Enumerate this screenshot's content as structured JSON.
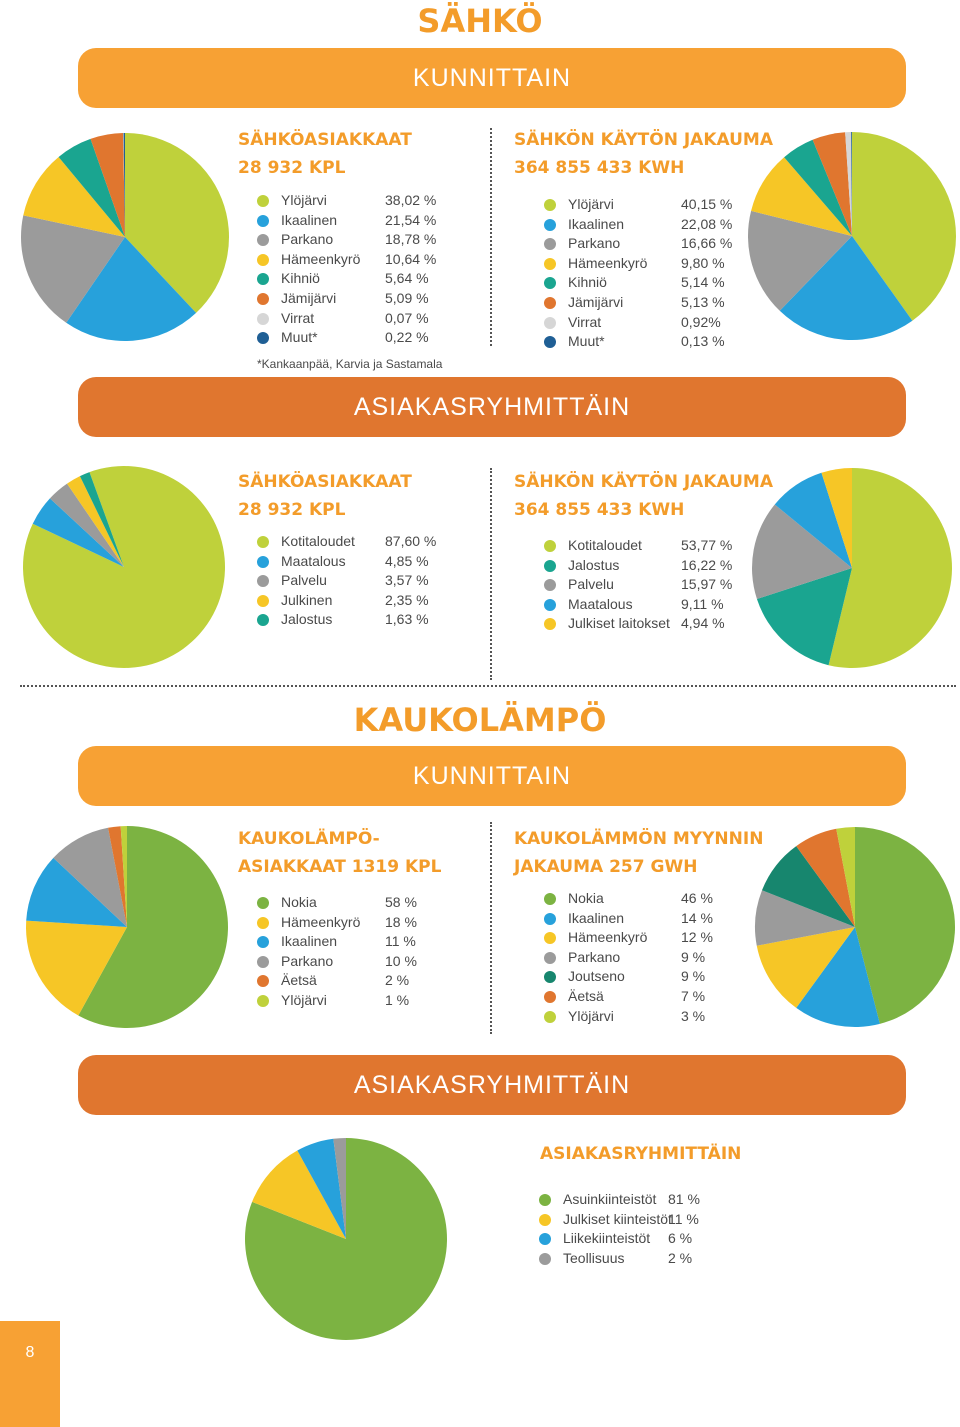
{
  "sahko": {
    "title": "SÄHKÖ",
    "banner_kunnittain": "KUNNITTAIN",
    "banner_asiakasryhmittain": "ASIAKASRYHMITTÄIN",
    "kunnittain_left": {
      "h1": "SÄHKÖASIAKKAAT",
      "h2": "28 932 KPL"
    },
    "kunnittain_right": {
      "h1": "SÄHKÖN KÄYTÖN JAKAUMA",
      "h2": "364 855 433 KWH"
    },
    "footnote": "*Kankaanpää, Karvia ja Sastamala",
    "ryhmittain_left": {
      "h1": "SÄHKÖASIAKKAAT",
      "h2": "28 932 KPL"
    },
    "ryhmittain_right": {
      "h1": "SÄHKÖN KÄYTÖN JAKAUMA",
      "h2": "364 855 433 KWH"
    }
  },
  "kaukolampo": {
    "title": "KAUKOLÄMPÖ",
    "banner_kunnittain": "KUNNITTAIN",
    "banner_asiakasryhmittain": "ASIAKASRYHMITTÄIN",
    "kunnittain_left": {
      "h1": "KAUKOLÄMPÖ-",
      "h2": "ASIAKKAAT 1319 KPL"
    },
    "kunnittain_right": {
      "h1": "KAUKOLÄMMÖN MYYNNIN",
      "h2": "JAKAUMA 257 GWH"
    },
    "ryhmittain": {
      "h1": "ASIAKASRYHMITTÄIN"
    }
  },
  "page_number": "8",
  "chart_data": [
    {
      "id": "c1",
      "type": "pie",
      "labels": [
        "Ylöjärvi",
        "Ikaalinen",
        "Parkano",
        "Hämeenkyrö",
        "Kihniö",
        "Jämijärvi",
        "Virrat",
        "Muut*"
      ],
      "values": [
        38.02,
        21.54,
        18.78,
        10.64,
        5.64,
        5.09,
        0.07,
        0.22
      ],
      "value_labels": [
        "38,02 %",
        "21,54 %",
        "18,78 %",
        "10,64 %",
        "5,64 %",
        "5,09 %",
        "0,07 %",
        "0,22 %"
      ],
      "colors": [
        "#bfd13b",
        "#27a1db",
        "#9b9b9b",
        "#f6c626",
        "#1aa590",
        "#e0762f",
        "#d6d6d6",
        "#1f5f95"
      ]
    },
    {
      "id": "c2",
      "type": "pie",
      "labels": [
        "Ylöjärvi",
        "Ikaalinen",
        "Parkano",
        "Hämeenkyrö",
        "Kihniö",
        "Jämijärvi",
        "Virrat",
        "Muut*"
      ],
      "values": [
        40.15,
        22.08,
        16.66,
        9.8,
        5.14,
        5.13,
        0.92,
        0.13
      ],
      "value_labels": [
        "40,15 %",
        "22,08 %",
        "16,66 %",
        "9,80 %",
        "5,14 %",
        "5,13 %",
        "0,92%",
        "0,13 %"
      ],
      "colors": [
        "#bfd13b",
        "#27a1db",
        "#9b9b9b",
        "#f6c626",
        "#1aa590",
        "#e0762f",
        "#d6d6d6",
        "#1f5f95"
      ]
    },
    {
      "id": "c3",
      "type": "pie",
      "labels": [
        "Kotitaloudet",
        "Maatalous",
        "Palvelu",
        "Julkinen",
        "Jalostus"
      ],
      "values": [
        87.6,
        4.85,
        3.57,
        2.35,
        1.63
      ],
      "value_labels": [
        "87,60 %",
        "4,85 %",
        "3,57 %",
        "2,35 %",
        "1,63 %"
      ],
      "colors": [
        "#bfd13b",
        "#27a1db",
        "#9b9b9b",
        "#f6c626",
        "#1aa590"
      ]
    },
    {
      "id": "c4",
      "type": "pie",
      "labels": [
        "Kotitaloudet",
        "Jalostus",
        "Palvelu",
        "Maatalous",
        "Julkiset laitokset"
      ],
      "values": [
        53.77,
        16.22,
        15.97,
        9.11,
        4.94
      ],
      "value_labels": [
        "53,77 %",
        "16,22 %",
        "15,97 %",
        "9,11 %",
        "4,94 %"
      ],
      "colors": [
        "#bfd13b",
        "#1aa590",
        "#9b9b9b",
        "#27a1db",
        "#f6c626"
      ]
    },
    {
      "id": "c5",
      "type": "pie",
      "labels": [
        "Nokia",
        "Hämeenkyrö",
        "Ikaalinen",
        "Parkano",
        "Äetsä",
        "Ylöjärvi"
      ],
      "values": [
        58,
        18,
        11,
        10,
        2,
        1
      ],
      "value_labels": [
        "58 %",
        "18 %",
        "11 %",
        "10 %",
        "2 %",
        "1 %"
      ],
      "colors": [
        "#7cb342",
        "#f6c626",
        "#27a1db",
        "#9b9b9b",
        "#e0762f",
        "#bfd13b"
      ]
    },
    {
      "id": "c6",
      "type": "pie",
      "labels": [
        "Nokia",
        "Ikaalinen",
        "Hämeenkyrö",
        "Parkano",
        "Joutseno",
        "Äetsä",
        "Ylöjärvi"
      ],
      "values": [
        46,
        14,
        12,
        9,
        9,
        7,
        3
      ],
      "value_labels": [
        "46 %",
        "14 %",
        "12 %",
        "9 %",
        "9 %",
        "7 %",
        "3 %"
      ],
      "colors": [
        "#7cb342",
        "#27a1db",
        "#f6c626",
        "#9b9b9b",
        "#17866e",
        "#e0762f",
        "#bfd13b"
      ]
    },
    {
      "id": "c7",
      "type": "pie",
      "labels": [
        "Asuinkiinteistöt",
        "Julkiset kiinteistöt",
        "Liikekiinteistöt",
        "Teollisuus"
      ],
      "values": [
        81,
        11,
        6,
        2
      ],
      "value_labels": [
        "81 %",
        "11 %",
        "6 %",
        "2 %"
      ],
      "colors": [
        "#7cb342",
        "#f6c626",
        "#27a1db",
        "#9b9b9b"
      ]
    }
  ]
}
